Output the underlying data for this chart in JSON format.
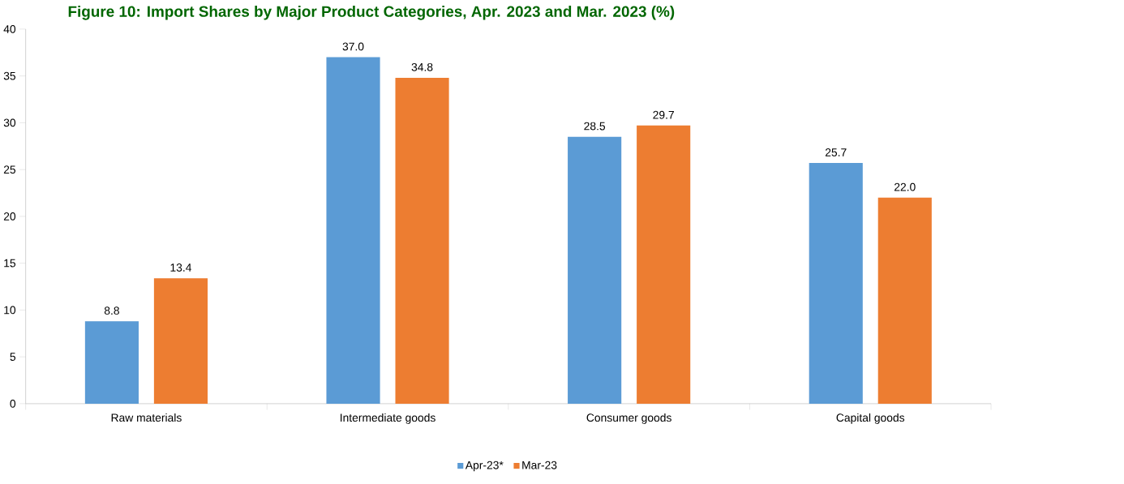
{
  "chart_data": {
    "type": "bar",
    "title": "Figure 10: Import Shares by Major Product Categories, Apr. 2023 and Mar. 2023 (%)",
    "categories": [
      "Raw materials",
      "Intermediate goods",
      "Consumer goods",
      "Capital goods"
    ],
    "series": [
      {
        "name": "Apr-23*",
        "color": "#5b9bd5",
        "values": [
          8.8,
          37.0,
          28.5,
          25.7
        ],
        "value_labels": [
          "8.8",
          "37.0",
          "28.5",
          "25.7"
        ]
      },
      {
        "name": "Mar-23",
        "color": "#ed7d31",
        "values": [
          13.4,
          34.8,
          29.7,
          22.0
        ],
        "value_labels": [
          "13.4",
          "34.8",
          "29.7",
          "22.0"
        ]
      }
    ],
    "ylim": [
      0,
      40
    ],
    "yticks": [
      0,
      5,
      10,
      15,
      20,
      25,
      30,
      35,
      40
    ],
    "grid": false,
    "legend": "bottom"
  }
}
